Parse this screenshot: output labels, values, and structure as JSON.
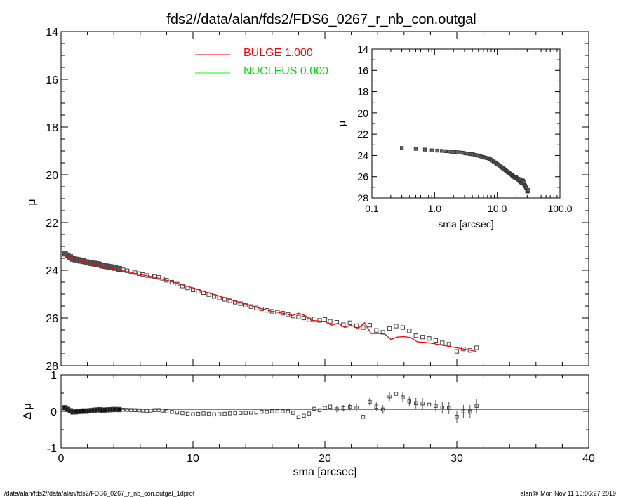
{
  "title": "fds2//data/alan/fds2/FDS6_0267_r_nb_con.outgal",
  "footer_left": "/data/alan/fds2//data/alan/fds2/FDS6_0267_r_nb_con.outgal_1dprof",
  "footer_right": "alan@  Mon Nov 11 16:06:27 2019",
  "legend": [
    {
      "label": "BULGE  1.000",
      "color": "#ff0000"
    },
    {
      "label": "NUCLEUS  0.000",
      "color": "#00ff00"
    }
  ],
  "chart_data": [
    {
      "id": "main",
      "type": "scatter",
      "ylabel": "μ",
      "xlim": [
        0,
        40
      ],
      "ylim": [
        28,
        14
      ],
      "yticks": [
        "14",
        "16",
        "18",
        "20",
        "22",
        "24",
        "26",
        "28"
      ],
      "data_x": [
        0.3,
        0.5,
        0.7,
        0.9,
        1.1,
        1.3,
        1.5,
        1.7,
        1.9,
        2.1,
        2.3,
        2.5,
        2.7,
        2.9,
        3.1,
        3.3,
        3.5,
        3.7,
        3.9,
        4.1,
        4.4,
        4.7,
        5.0,
        5.3,
        5.6,
        5.9,
        6.2,
        6.5,
        6.8,
        7.1,
        7.4,
        7.7,
        8.0,
        8.4,
        8.8,
        9.2,
        9.6,
        10.0,
        10.4,
        10.8,
        11.2,
        11.6,
        12.0,
        12.4,
        12.8,
        13.2,
        13.6,
        14.0,
        14.4,
        14.8,
        15.2,
        15.6,
        16.0,
        16.4,
        16.8,
        17.2,
        17.6,
        18.0,
        18.4,
        18.8,
        19.2,
        19.6,
        20.0,
        20.4,
        20.9,
        21.4,
        21.9,
        22.4,
        22.9,
        23.4,
        23.9,
        24.4,
        24.9,
        25.4,
        25.9,
        26.4,
        26.9,
        27.4,
        27.9,
        28.4,
        28.9,
        29.4,
        30.0,
        30.5,
        31.0,
        31.5
      ],
      "data_y": [
        23.3,
        23.38,
        23.45,
        23.52,
        23.55,
        23.57,
        23.6,
        23.62,
        23.66,
        23.68,
        23.7,
        23.72,
        23.74,
        23.76,
        23.8,
        23.82,
        23.84,
        23.86,
        23.88,
        23.9,
        23.94,
        23.98,
        24.02,
        24.06,
        24.1,
        24.14,
        24.18,
        24.22,
        24.24,
        24.26,
        24.3,
        24.36,
        24.42,
        24.5,
        24.58,
        24.66,
        24.74,
        24.82,
        24.88,
        24.94,
        25.02,
        25.1,
        25.16,
        25.22,
        25.28,
        25.34,
        25.4,
        25.46,
        25.52,
        25.58,
        25.62,
        25.68,
        25.72,
        25.76,
        25.8,
        25.86,
        25.92,
        25.96,
        26.0,
        26.08,
        26.04,
        26.1,
        26.06,
        26.14,
        26.18,
        26.28,
        26.2,
        26.32,
        26.4,
        26.3,
        26.52,
        26.6,
        26.44,
        26.34,
        26.4,
        26.54,
        26.74,
        26.8,
        26.86,
        26.94,
        27.04,
        27.1,
        27.4,
        27.3,
        27.36,
        27.25
      ],
      "model_x": [
        0.3,
        1.0,
        2.0,
        3.0,
        4.0,
        5.0,
        6.0,
        7.0,
        8.0,
        9.0,
        10.0,
        11.0,
        12.0,
        13.0,
        14.0,
        15.0,
        16.0,
        17.0,
        17.5,
        18.0,
        18.5,
        19.0,
        20.0,
        20.5,
        21.0,
        21.5,
        22.0,
        22.5,
        23.0,
        23.5,
        24.0,
        24.5,
        25.0,
        25.5,
        26.0,
        26.5,
        27.0,
        27.5,
        28.0,
        29.0,
        30.0,
        31.5
      ],
      "model_y": [
        23.4,
        23.52,
        23.68,
        23.82,
        23.94,
        24.06,
        24.18,
        24.28,
        24.42,
        24.58,
        24.74,
        24.92,
        25.08,
        25.26,
        25.42,
        25.58,
        25.72,
        25.82,
        25.9,
        25.8,
        25.9,
        26.1,
        26.15,
        26.3,
        26.22,
        26.4,
        26.3,
        26.45,
        26.2,
        26.65,
        26.65,
        26.65,
        26.9,
        26.8,
        26.78,
        26.82,
        27.0,
        27.02,
        27.05,
        27.15,
        27.25,
        27.4
      ]
    },
    {
      "id": "inset",
      "type": "scatter",
      "xlabel": "sma [arcsec]",
      "ylabel": "μ",
      "xscale": "log",
      "xlim": [
        0.1,
        100
      ],
      "ylim": [
        28,
        14
      ],
      "xticks": [
        "0.1",
        "1.0",
        "10.0",
        "100.0"
      ],
      "yticks": [
        "14",
        "16",
        "18",
        "20",
        "22",
        "24",
        "26",
        "28"
      ]
    },
    {
      "id": "residual",
      "type": "scatter",
      "xlabel": "sma [arcsec]",
      "ylabel": "Δ μ",
      "xlim": [
        0,
        40
      ],
      "ylim": [
        -1,
        1
      ],
      "xticks": [
        "0",
        "10",
        "20",
        "30",
        "40"
      ],
      "yticks": [
        "1",
        "0",
        "-1"
      ],
      "reference_line": 0
    }
  ]
}
